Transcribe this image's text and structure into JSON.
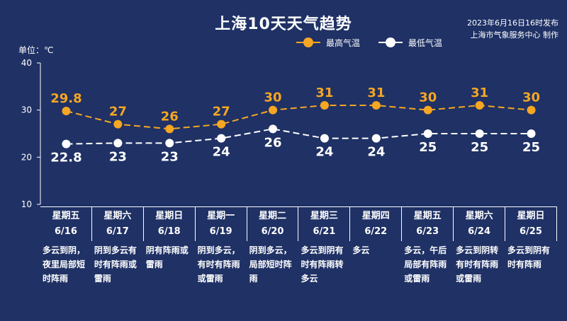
{
  "header": {
    "title": "上海10天天气趋势",
    "issued": "2023年6月16日16时发布",
    "producer": "上海市气象服务中心 制作",
    "unit": "单位：℃"
  },
  "legend": {
    "high_label": "最高气温",
    "low_label": "最低气温"
  },
  "colors": {
    "background": "#1f3165",
    "high": "#f5a623",
    "low": "#ffffff"
  },
  "days": [
    {
      "weekday": "星期五",
      "date": "6/16",
      "weather": "多云到阴，夜里局部短时阵雨"
    },
    {
      "weekday": "星期六",
      "date": "6/17",
      "weather": "阴到多云有时有阵雨或雷雨"
    },
    {
      "weekday": "星期日",
      "date": "6/18",
      "weather": "阴有阵雨或雷雨"
    },
    {
      "weekday": "星期一",
      "date": "6/19",
      "weather": "阴到多云，有时有阵雨或雷雨"
    },
    {
      "weekday": "星期二",
      "date": "6/20",
      "weather": "阴到多云，局部短时阵雨"
    },
    {
      "weekday": "星期三",
      "date": "6/21",
      "weather": "多云到阴有时有阵雨转多云"
    },
    {
      "weekday": "星期四",
      "date": "6/22",
      "weather": "多云"
    },
    {
      "weekday": "星期五",
      "date": "6/23",
      "weather": "多云，午后局部有阵雨或雷雨"
    },
    {
      "weekday": "星期六",
      "date": "6/24",
      "weather": "多云到阴转有时有阵雨或雷雨"
    },
    {
      "weekday": "星期日",
      "date": "6/25",
      "weather": "多云到阴有时有阵雨"
    }
  ],
  "chart_data": {
    "type": "line",
    "title": "上海10天天气趋势",
    "ylabel": "单位：℃",
    "categories": [
      "6/16",
      "6/17",
      "6/18",
      "6/19",
      "6/20",
      "6/21",
      "6/22",
      "6/23",
      "6/24",
      "6/25"
    ],
    "series": [
      {
        "name": "最高气温",
        "values": [
          29.8,
          27,
          26,
          27,
          30,
          31,
          31,
          30,
          31,
          30
        ],
        "labels": [
          "29.8",
          "27",
          "26",
          "27",
          "30",
          "31",
          "31",
          "30",
          "31",
          "30"
        ]
      },
      {
        "name": "最低气温",
        "values": [
          22.8,
          23,
          23,
          24,
          26,
          24,
          24,
          25,
          25,
          25
        ],
        "labels": [
          "22.8",
          "23",
          "23",
          "24",
          "26",
          "24",
          "24",
          "25",
          "25",
          "25"
        ]
      }
    ],
    "ylim": [
      10,
      40
    ],
    "yticks": [
      "10",
      "20",
      "30",
      "40"
    ],
    "line_style": "dashed",
    "legend_position": "top-right",
    "grid": false
  }
}
